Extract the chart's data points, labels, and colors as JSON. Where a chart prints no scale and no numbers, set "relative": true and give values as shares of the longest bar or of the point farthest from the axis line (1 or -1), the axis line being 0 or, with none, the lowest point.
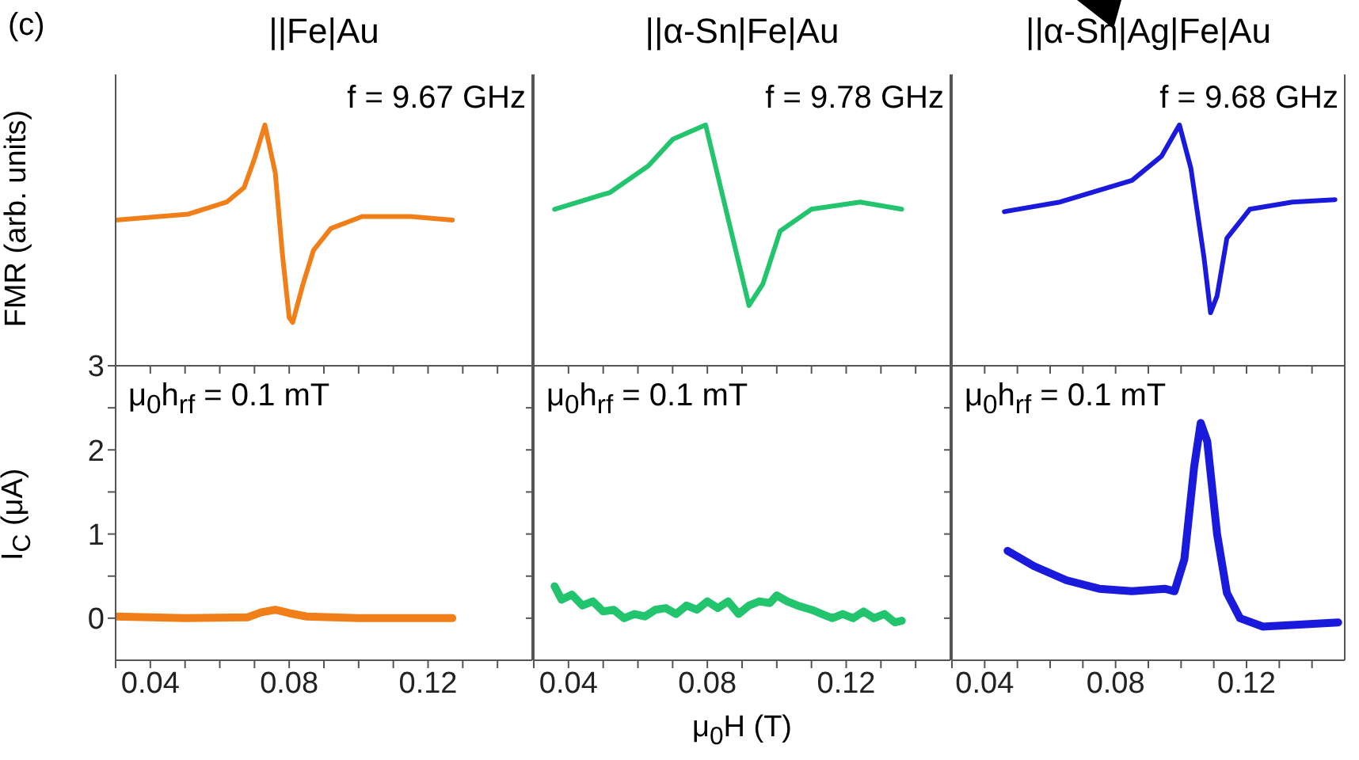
{
  "chart_data": [
    {
      "type": "line",
      "title": "||Fe|Au",
      "ylabel": "FMR (arb. units)",
      "relative": true,
      "tick_labels": false,
      "annotations": [
        "(c)",
        "f = 9.67 GHz"
      ],
      "xlim": [
        0.03,
        0.15
      ],
      "xticks": [
        {
          "value": 0.03,
          "label": null
        },
        0.04,
        {
          "value": 0.05,
          "label": null
        },
        {
          "value": 0.06,
          "label": null
        },
        {
          "value": 0.07,
          "label": null
        },
        0.08,
        {
          "value": 0.09,
          "label": null
        },
        {
          "value": 0.1,
          "label": null
        },
        {
          "value": 0.11,
          "label": null
        },
        0.12,
        {
          "value": 0.13,
          "label": null
        },
        {
          "value": 0.14,
          "label": null
        }
      ],
      "series": [
        {
          "color": "#f07f1a",
          "x": [
            0.03,
            0.051,
            0.062,
            0.067,
            0.07,
            0.073,
            0.076,
            0.078,
            0.08,
            0.081,
            0.084,
            0.087,
            0.092,
            0.101,
            0.115,
            0.127
          ],
          "values": [
            0.605,
            0.63,
            0.68,
            0.74,
            0.86,
            1.0,
            0.8,
            0.47,
            0.2,
            0.18,
            0.34,
            0.48,
            0.57,
            0.62,
            0.62,
            0.605
          ]
        }
      ]
    },
    {
      "type": "line",
      "title": "||α-Sn|Fe|Au",
      "relative": true,
      "tick_labels": false,
      "annotations": [
        "f = 9.78 GHz"
      ],
      "xlim": [
        0.03,
        0.15
      ],
      "xticks": [
        {
          "value": 0.03,
          "label": null
        },
        0.04,
        {
          "value": 0.05,
          "label": null
        },
        {
          "value": 0.06,
          "label": null
        },
        {
          "value": 0.07,
          "label": null
        },
        0.08,
        {
          "value": 0.09,
          "label": null
        },
        {
          "value": 0.1,
          "label": null
        },
        {
          "value": 0.11,
          "label": null
        },
        0.12,
        {
          "value": 0.13,
          "label": null
        },
        {
          "value": 0.14,
          "label": null
        }
      ],
      "series": [
        {
          "color": "#22c46e",
          "x": [
            0.036,
            0.052,
            0.063,
            0.07,
            0.0795,
            0.085,
            0.09,
            0.092,
            0.096,
            0.101,
            0.11,
            0.124,
            0.136
          ],
          "values": [
            0.65,
            0.72,
            0.83,
            0.94,
            1.0,
            0.67,
            0.37,
            0.25,
            0.34,
            0.56,
            0.65,
            0.68,
            0.65
          ]
        }
      ]
    },
    {
      "type": "line",
      "title": "||α-Sn|Ag|Fe|Au",
      "relative": true,
      "tick_labels": false,
      "annotations": [
        "f = 9.68 GHz"
      ],
      "xlim": [
        0.03,
        0.15
      ],
      "xticks": [
        {
          "value": 0.03,
          "label": null
        },
        0.04,
        {
          "value": 0.05,
          "label": null
        },
        {
          "value": 0.06,
          "label": null
        },
        {
          "value": 0.07,
          "label": null
        },
        0.08,
        {
          "value": 0.09,
          "label": null
        },
        {
          "value": 0.1,
          "label": null
        },
        {
          "value": 0.11,
          "label": null
        },
        0.12,
        {
          "value": 0.13,
          "label": null
        },
        {
          "value": 0.14,
          "label": null
        }
      ],
      "series": [
        {
          "color": "#1a1adc",
          "x": [
            0.046,
            0.063,
            0.085,
            0.094,
            0.0995,
            0.103,
            0.107,
            0.109,
            0.111,
            0.114,
            0.121,
            0.134,
            0.147
          ],
          "values": [
            0.64,
            0.68,
            0.77,
            0.87,
            1.0,
            0.82,
            0.45,
            0.22,
            0.29,
            0.53,
            0.65,
            0.68,
            0.69
          ]
        }
      ]
    },
    {
      "type": "line",
      "ylabel": "I$_{C}$ (μA)",
      "annotations": [
        "μ$_{0}$h$_{rf}$ = 0.1 mT"
      ],
      "xlim": [
        0.03,
        0.15
      ],
      "xticks": [
        {
          "value": 0.03,
          "label": null
        },
        0.04,
        {
          "value": 0.05,
          "label": null
        },
        {
          "value": 0.06,
          "label": null
        },
        {
          "value": 0.07,
          "label": null
        },
        0.08,
        {
          "value": 0.09,
          "label": null
        },
        {
          "value": 0.1,
          "label": null
        },
        {
          "value": 0.11,
          "label": null
        },
        0.12,
        {
          "value": 0.13,
          "label": null
        },
        {
          "value": 0.14,
          "label": null
        }
      ],
      "ylim": [
        -0.5,
        3
      ],
      "yticks": [
        0,
        {
          "value": 0.5,
          "label": null
        },
        1,
        {
          "value": 1.5,
          "label": null
        },
        2,
        {
          "value": 2.5,
          "label": null
        },
        3
      ],
      "series": [
        {
          "color": "#f07f1a",
          "x": [
            0.03,
            0.05,
            0.068,
            0.072,
            0.076,
            0.08,
            0.085,
            0.1,
            0.127
          ],
          "values": [
            0.02,
            0.0,
            0.01,
            0.07,
            0.1,
            0.06,
            0.02,
            0.0,
            0.0
          ]
        }
      ]
    },
    {
      "type": "line",
      "xlabel": "μ$_{0}$H (T)",
      "tick_labels": "x",
      "annotations": [
        "μ$_{0}$h$_{rf}$ = 0.1 mT"
      ],
      "xlim": [
        0.03,
        0.15
      ],
      "xticks": [
        {
          "value": 0.03,
          "label": null
        },
        0.04,
        {
          "value": 0.05,
          "label": null
        },
        {
          "value": 0.06,
          "label": null
        },
        {
          "value": 0.07,
          "label": null
        },
        0.08,
        {
          "value": 0.09,
          "label": null
        },
        {
          "value": 0.1,
          "label": null
        },
        {
          "value": 0.11,
          "label": null
        },
        0.12,
        {
          "value": 0.13,
          "label": null
        },
        {
          "value": 0.14,
          "label": null
        }
      ],
      "ylim": [
        -0.5,
        3
      ],
      "yticks": [
        0,
        {
          "value": 0.5,
          "label": null
        },
        1,
        {
          "value": 1.5,
          "label": null
        },
        2,
        {
          "value": 2.5,
          "label": null
        },
        3
      ],
      "series": [
        {
          "color": "#22c46e",
          "x": [
            0.036,
            0.038,
            0.041,
            0.044,
            0.047,
            0.05,
            0.053,
            0.056,
            0.059,
            0.062,
            0.065,
            0.068,
            0.071,
            0.074,
            0.077,
            0.08,
            0.083,
            0.086,
            0.089,
            0.092,
            0.095,
            0.098,
            0.1,
            0.103,
            0.106,
            0.11,
            0.113,
            0.116,
            0.119,
            0.122,
            0.125,
            0.128,
            0.131,
            0.134,
            0.136
          ],
          "values": [
            0.38,
            0.22,
            0.28,
            0.15,
            0.2,
            0.08,
            0.1,
            0.0,
            0.05,
            0.02,
            0.1,
            0.12,
            0.05,
            0.15,
            0.1,
            0.2,
            0.12,
            0.2,
            0.05,
            0.15,
            0.2,
            0.18,
            0.27,
            0.2,
            0.15,
            0.1,
            0.05,
            0.0,
            0.05,
            0.0,
            0.08,
            0.0,
            0.05,
            -0.05,
            -0.03
          ]
        }
      ]
    },
    {
      "type": "line",
      "tick_labels": "x",
      "annotations": [
        "μ$_{0}$h$_{rf}$ = 0.1 mT"
      ],
      "xlim": [
        0.03,
        0.15
      ],
      "xticks": [
        {
          "value": 0.03,
          "label": null
        },
        0.04,
        {
          "value": 0.05,
          "label": null
        },
        {
          "value": 0.06,
          "label": null
        },
        {
          "value": 0.07,
          "label": null
        },
        0.08,
        {
          "value": 0.09,
          "label": null
        },
        {
          "value": 0.1,
          "label": null
        },
        {
          "value": 0.11,
          "label": null
        },
        0.12,
        {
          "value": 0.13,
          "label": null
        },
        {
          "value": 0.14,
          "label": null
        }
      ],
      "ylim": [
        -0.5,
        3
      ],
      "yticks": [
        0,
        {
          "value": 0.5,
          "label": null
        },
        1,
        {
          "value": 1.5,
          "label": null
        },
        2,
        {
          "value": 2.5,
          "label": null
        },
        3
      ],
      "series": [
        {
          "color": "#1a1adc",
          "x": [
            0.047,
            0.055,
            0.065,
            0.075,
            0.085,
            0.095,
            0.098,
            0.101,
            0.104,
            0.106,
            0.108,
            0.111,
            0.114,
            0.118,
            0.125,
            0.135,
            0.148
          ],
          "values": [
            0.8,
            0.62,
            0.45,
            0.35,
            0.32,
            0.35,
            0.32,
            0.7,
            1.8,
            2.32,
            2.1,
            1.0,
            0.3,
            0.0,
            -0.1,
            -0.08,
            -0.05
          ]
        }
      ]
    }
  ]
}
